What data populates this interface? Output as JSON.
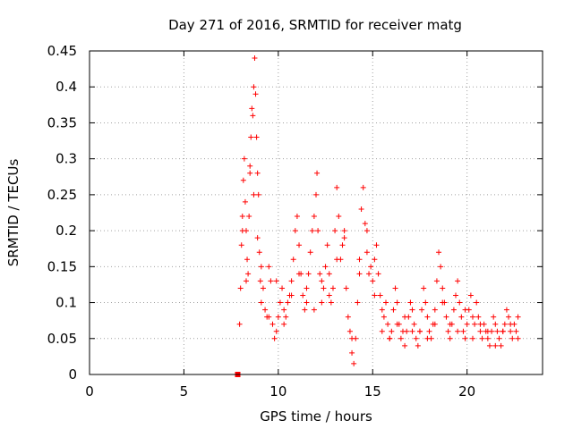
{
  "chart_data": {
    "type": "scatter",
    "title": "Day 271 of 2016, SRMTID for receiver matg",
    "xlabel": "GPS time / hours",
    "ylabel": "SRMTID / TECUs",
    "xlim": [
      0,
      24
    ],
    "ylim": [
      0,
      0.45
    ],
    "xticks": [
      0,
      5,
      10,
      15,
      20
    ],
    "xtick_labels": [
      "0",
      "5",
      "10",
      "15",
      "20"
    ],
    "yticks": [
      0,
      0.05,
      0.1,
      0.15,
      0.2,
      0.25,
      0.3,
      0.35,
      0.4,
      0.45
    ],
    "ytick_labels": [
      "0",
      "0.05",
      "0.1",
      "0.15",
      "0.2",
      "0.25",
      "0.3",
      "0.35",
      "0.4",
      "0.45"
    ],
    "grid": true,
    "marker": "plus",
    "color": "#ff0000",
    "outlier_marker": {
      "x": 7.85,
      "y": 0.0,
      "shape": "square"
    },
    "series": [
      {
        "name": "SRMTID",
        "x": [
          7.95,
          8.0,
          8.05,
          8.1,
          8.15,
          8.2,
          8.25,
          8.3,
          8.35,
          8.4,
          8.45,
          8.5,
          8.55,
          8.6,
          8.65,
          8.7,
          8.75,
          8.8,
          8.85,
          8.9,
          8.95,
          9.0,
          9.05,
          9.1,
          9.2,
          9.3,
          9.4,
          9.5,
          9.6,
          9.7,
          9.8,
          9.9,
          10.0,
          10.1,
          10.2,
          10.3,
          10.4,
          10.5,
          10.6,
          10.7,
          10.8,
          10.9,
          11.0,
          11.1,
          11.2,
          11.3,
          11.4,
          11.5,
          11.6,
          11.7,
          11.8,
          11.9,
          12.0,
          12.05,
          12.1,
          12.2,
          12.3,
          12.4,
          12.5,
          12.6,
          12.7,
          12.8,
          12.9,
          13.0,
          13.1,
          13.2,
          13.3,
          13.4,
          13.5,
          13.6,
          13.7,
          13.8,
          13.9,
          14.0,
          14.1,
          14.2,
          14.3,
          14.4,
          14.5,
          14.6,
          14.7,
          14.8,
          14.9,
          15.0,
          15.1,
          15.2,
          15.3,
          15.4,
          15.5,
          15.6,
          15.7,
          15.8,
          15.9,
          16.0,
          16.1,
          16.2,
          16.3,
          16.4,
          16.5,
          16.6,
          16.7,
          16.8,
          16.9,
          17.0,
          17.1,
          17.2,
          17.3,
          17.4,
          17.5,
          17.6,
          17.7,
          17.8,
          17.9,
          18.0,
          18.1,
          18.2,
          18.3,
          18.4,
          18.5,
          18.6,
          18.7,
          18.8,
          18.9,
          19.0,
          19.1,
          19.2,
          19.3,
          19.4,
          19.5,
          19.6,
          19.7,
          19.8,
          19.9,
          20.0,
          20.1,
          20.2,
          20.3,
          20.4,
          20.5,
          20.6,
          20.7,
          20.8,
          20.9,
          21.0,
          21.1,
          21.2,
          21.3,
          21.4,
          21.5,
          21.6,
          21.7,
          21.8,
          21.9,
          22.0,
          22.1,
          22.2,
          22.3,
          22.4,
          22.5,
          22.6,
          22.7,
          8.1,
          8.3,
          8.5,
          8.7,
          8.9,
          9.1,
          9.5,
          9.9,
          10.3,
          10.7,
          11.1,
          11.5,
          11.9,
          12.3,
          12.7,
          13.1,
          13.5,
          13.9,
          14.3,
          14.7,
          15.1,
          15.5,
          15.9,
          16.3,
          16.7,
          17.1,
          17.5,
          17.9,
          18.3,
          18.7,
          19.1,
          19.5,
          19.9,
          20.3,
          20.7,
          21.1,
          21.5,
          21.9,
          22.3,
          22.7
        ],
        "y": [
          0.07,
          0.12,
          0.18,
          0.22,
          0.27,
          0.3,
          0.24,
          0.2,
          0.16,
          0.14,
          0.22,
          0.28,
          0.33,
          0.37,
          0.36,
          0.4,
          0.44,
          0.39,
          0.33,
          0.28,
          0.25,
          0.17,
          0.13,
          0.1,
          0.12,
          0.09,
          0.08,
          0.15,
          0.13,
          0.07,
          0.05,
          0.06,
          0.08,
          0.1,
          0.12,
          0.09,
          0.08,
          0.1,
          0.11,
          0.13,
          0.16,
          0.2,
          0.22,
          0.18,
          0.14,
          0.11,
          0.09,
          0.1,
          0.14,
          0.17,
          0.2,
          0.22,
          0.25,
          0.28,
          0.2,
          0.14,
          0.1,
          0.12,
          0.15,
          0.18,
          0.14,
          0.1,
          0.12,
          0.2,
          0.26,
          0.22,
          0.16,
          0.18,
          0.2,
          0.12,
          0.08,
          0.06,
          0.03,
          0.015,
          0.05,
          0.1,
          0.16,
          0.23,
          0.26,
          0.21,
          0.17,
          0.14,
          0.15,
          0.13,
          0.16,
          0.18,
          0.14,
          0.11,
          0.09,
          0.08,
          0.1,
          0.07,
          0.05,
          0.06,
          0.09,
          0.12,
          0.1,
          0.07,
          0.05,
          0.06,
          0.04,
          0.06,
          0.08,
          0.1,
          0.09,
          0.07,
          0.05,
          0.04,
          0.06,
          0.09,
          0.12,
          0.1,
          0.08,
          0.06,
          0.05,
          0.07,
          0.09,
          0.13,
          0.17,
          0.15,
          0.12,
          0.1,
          0.08,
          0.06,
          0.05,
          0.07,
          0.09,
          0.11,
          0.13,
          0.1,
          0.08,
          0.06,
          0.05,
          0.07,
          0.09,
          0.11,
          0.08,
          0.07,
          0.1,
          0.08,
          0.06,
          0.05,
          0.07,
          0.06,
          0.05,
          0.04,
          0.06,
          0.08,
          0.07,
          0.06,
          0.05,
          0.04,
          0.06,
          0.07,
          0.09,
          0.08,
          0.06,
          0.05,
          0.07,
          0.06,
          0.08,
          0.2,
          0.13,
          0.29,
          0.25,
          0.19,
          0.15,
          0.08,
          0.13,
          0.07,
          0.11,
          0.14,
          0.12,
          0.09,
          0.13,
          0.11,
          0.16,
          0.19,
          0.05,
          0.14,
          0.2,
          0.11,
          0.06,
          0.05,
          0.07,
          0.08,
          0.06,
          0.06,
          0.05,
          0.07,
          0.1,
          0.07,
          0.06,
          0.09,
          0.05,
          0.07,
          0.06,
          0.04,
          0.06,
          0.07,
          0.05
        ]
      }
    ]
  }
}
